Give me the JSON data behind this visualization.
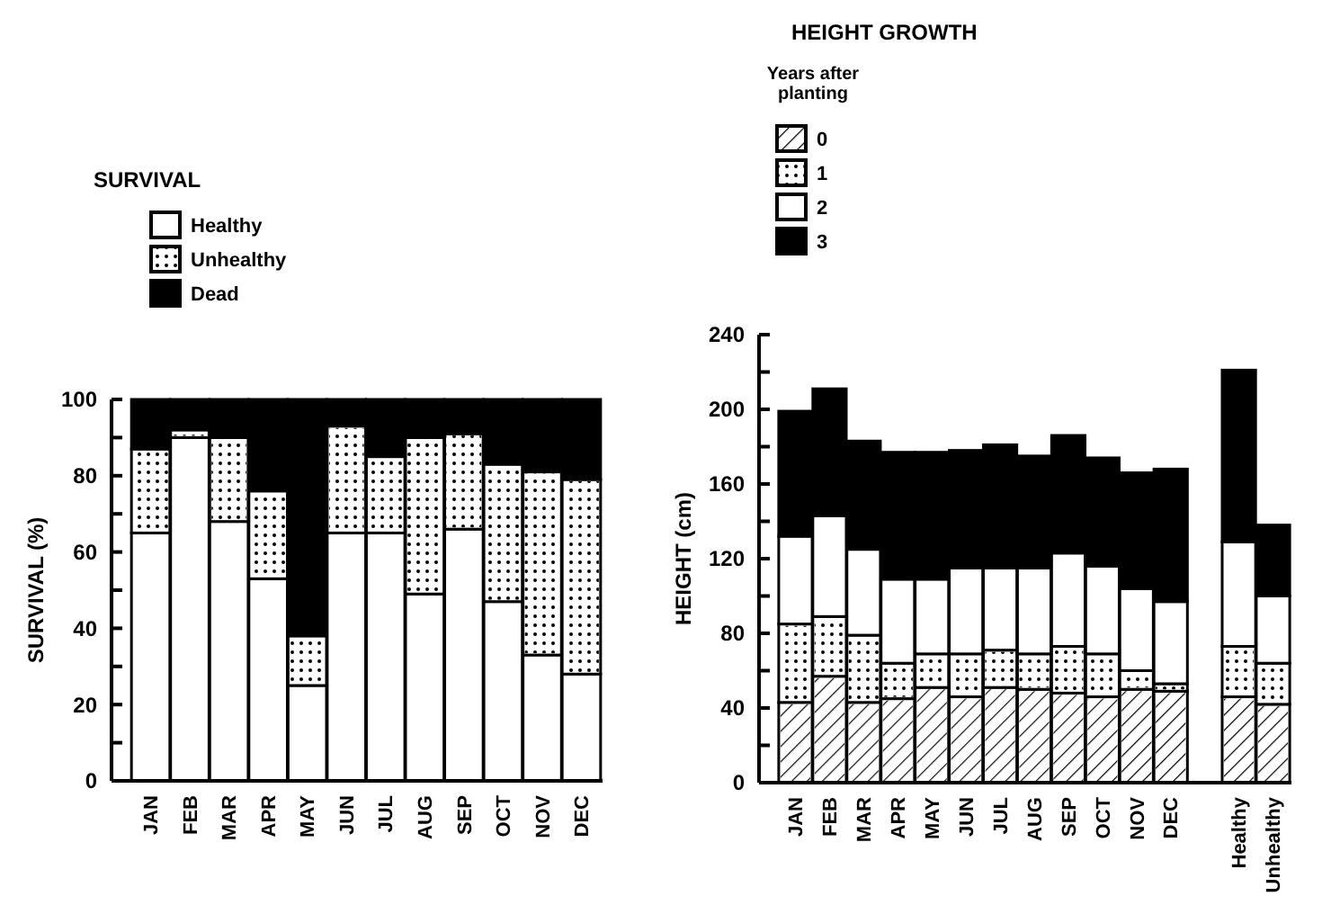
{
  "chart_data": [
    {
      "type": "bar",
      "title": "SURVIVAL",
      "ylabel": "SURVIVAL (%)",
      "categories": [
        "JAN",
        "FEB",
        "MAR",
        "APR",
        "MAY",
        "JUN",
        "JUL",
        "AUG",
        "SEP",
        "OCT",
        "NOV",
        "DEC"
      ],
      "stacked": true,
      "legend": "top left",
      "ylim": [
        0,
        100
      ],
      "yticks": [
        0,
        {
          "value": 10,
          "label": null
        },
        20,
        {
          "value": 30,
          "label": null
        },
        40,
        {
          "value": 50,
          "label": null
        },
        60,
        {
          "value": 70,
          "label": null
        },
        80,
        {
          "value": 90,
          "label": null
        },
        100
      ],
      "series": [
        {
          "name": "Healthy",
          "color": "#ffffff",
          "values": [
            65,
            90,
            68,
            53,
            25,
            65,
            65,
            49,
            66,
            47,
            33,
            28
          ]
        },
        {
          "name": "Unhealthy",
          "color": "#ffffff",
          "values": [
            22,
            2,
            22,
            23,
            13,
            28,
            20,
            41,
            25,
            36,
            48,
            51
          ]
        },
        {
          "name": "Dead",
          "color": "#000000",
          "values": [
            13,
            8,
            10,
            24,
            62,
            7,
            15,
            10,
            9,
            17,
            19,
            21
          ]
        }
      ]
    },
    {
      "type": "bar",
      "title": "HEIGHT GROWTH",
      "ylabel": "HEIGHT (cm)",
      "legend_title": "Years after planting",
      "categories": [
        "JAN",
        "FEB",
        "MAR",
        "APR",
        "MAY",
        "JUN",
        "JUL",
        "AUG",
        "SEP",
        "OCT",
        "NOV",
        "DEC",
        null,
        "Healthy",
        "Unhealthy"
      ],
      "stacked": true,
      "legend": "top left",
      "ylim": [
        0,
        240
      ],
      "yticks": [
        0,
        {
          "value": 20,
          "label": null
        },
        40,
        {
          "value": 60,
          "label": null
        },
        80,
        {
          "value": 100,
          "label": null
        },
        120,
        {
          "value": 140,
          "label": null
        },
        160,
        {
          "value": 180,
          "label": null
        },
        200,
        {
          "value": 220,
          "label": null
        },
        240
      ],
      "series": [
        {
          "name": "0",
          "color": "#ffffff",
          "values": [
            43,
            57,
            43,
            45,
            51,
            46,
            51,
            50,
            48,
            46,
            50,
            49,
            null,
            46,
            42
          ]
        },
        {
          "name": "1",
          "color": "#ffffff",
          "values": [
            42,
            32,
            36,
            19,
            18,
            23,
            20,
            19,
            25,
            23,
            10,
            4,
            null,
            27,
            22
          ]
        },
        {
          "name": "2",
          "color": "#ffffff",
          "values": [
            47,
            54,
            46,
            45,
            40,
            46,
            44,
            46,
            50,
            47,
            44,
            44,
            null,
            56,
            36
          ]
        },
        {
          "name": "3",
          "color": "#000000",
          "values": [
            67,
            68,
            58,
            68,
            68,
            63,
            66,
            60,
            63,
            58,
            62,
            71,
            null,
            92,
            38
          ]
        }
      ]
    }
  ]
}
